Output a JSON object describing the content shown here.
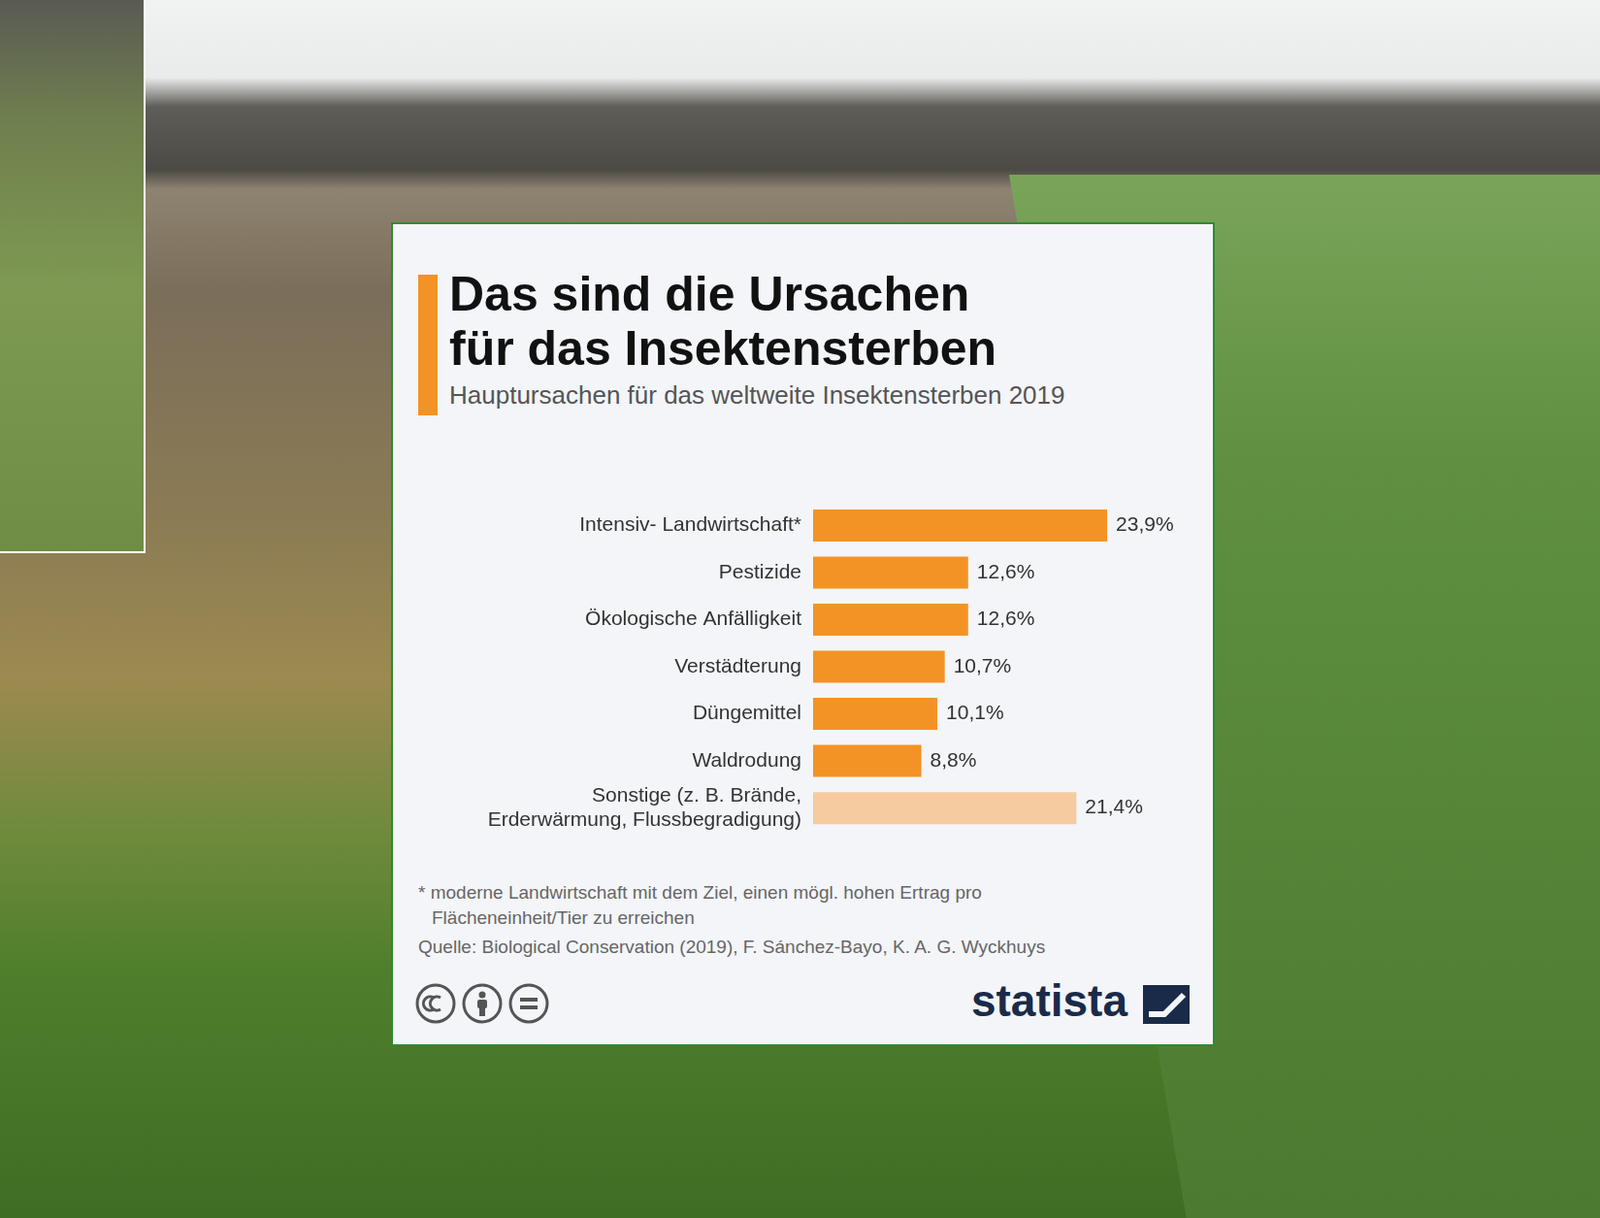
{
  "chart_data": {
    "type": "bar",
    "orientation": "horizontal",
    "title": "Das sind die Ursachen für das Insektensterben",
    "subtitle": "Hauptursachen für das weltweite Insektensterben 2019",
    "categories": [
      "Intensiv- Landwirtschaft*",
      "Pestizide",
      "Ökologische Anfälligkeit",
      "Verstädterung",
      "Düngemittel",
      "Waldrodung",
      "Sonstige (z. B. Brände, Erderwärmung, Flussbegradigung)"
    ],
    "values": [
      23.9,
      12.6,
      12.6,
      10.7,
      10.1,
      8.8,
      21.4
    ],
    "value_labels": [
      "23,9%",
      "12,6%",
      "12,6%",
      "10,7%",
      "10,1%",
      "8,8%",
      "21,4%"
    ],
    "colors": [
      "#f39325",
      "#f39325",
      "#f39325",
      "#f39325",
      "#f39325",
      "#f39325",
      "#f6cb9f"
    ],
    "data_labels": true,
    "tick_labels": "y",
    "grid": false,
    "xlim": [
      0,
      25
    ],
    "footnote": "* moderne Landwirtschaft mit dem Ziel, einen mögl. hohen Ertrag pro Flächeneinheit/Tier zu erreichen",
    "source": "Quelle: Biological Conservation (2019), F. Sánchez-Bayo, K. A. G. Wyckhuys",
    "brand": "statista"
  }
}
